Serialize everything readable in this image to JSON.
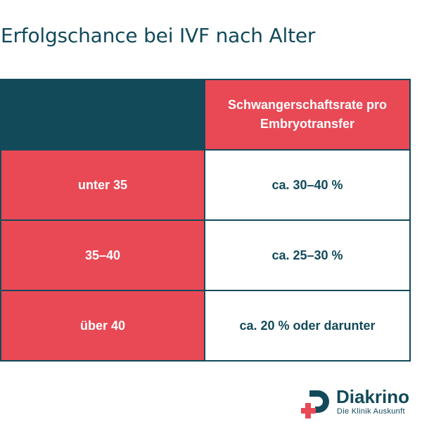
{
  "title": "Erfolgschance bei IVF nach Alter",
  "table": {
    "header": [
      "",
      "Schwangerschaftsrate pro Embryotransfer"
    ],
    "rows": [
      {
        "age": "unter 35",
        "rate": "ca. 30–40 %"
      },
      {
        "age": "35–40",
        "rate": "ca. 25–30 %"
      },
      {
        "age": "über 40",
        "rate": "ca. 20 % oder darunter"
      }
    ]
  },
  "brand": {
    "name": "Diakrino",
    "tagline": "Die Klinik Auskunft"
  },
  "colors": {
    "primary": "#124a5a",
    "accent": "#e84955",
    "background": "#ffffff"
  },
  "chart_data": {
    "type": "table",
    "title": "Erfolgschance bei IVF nach Alter",
    "columns": [
      "",
      "Schwangerschaftsrate pro Embryotransfer"
    ],
    "rows": [
      [
        "unter 35",
        "ca. 30–40 %"
      ],
      [
        "35–40",
        "ca. 25–30 %"
      ],
      [
        "über 40",
        "ca. 20 % oder darunter"
      ]
    ]
  }
}
